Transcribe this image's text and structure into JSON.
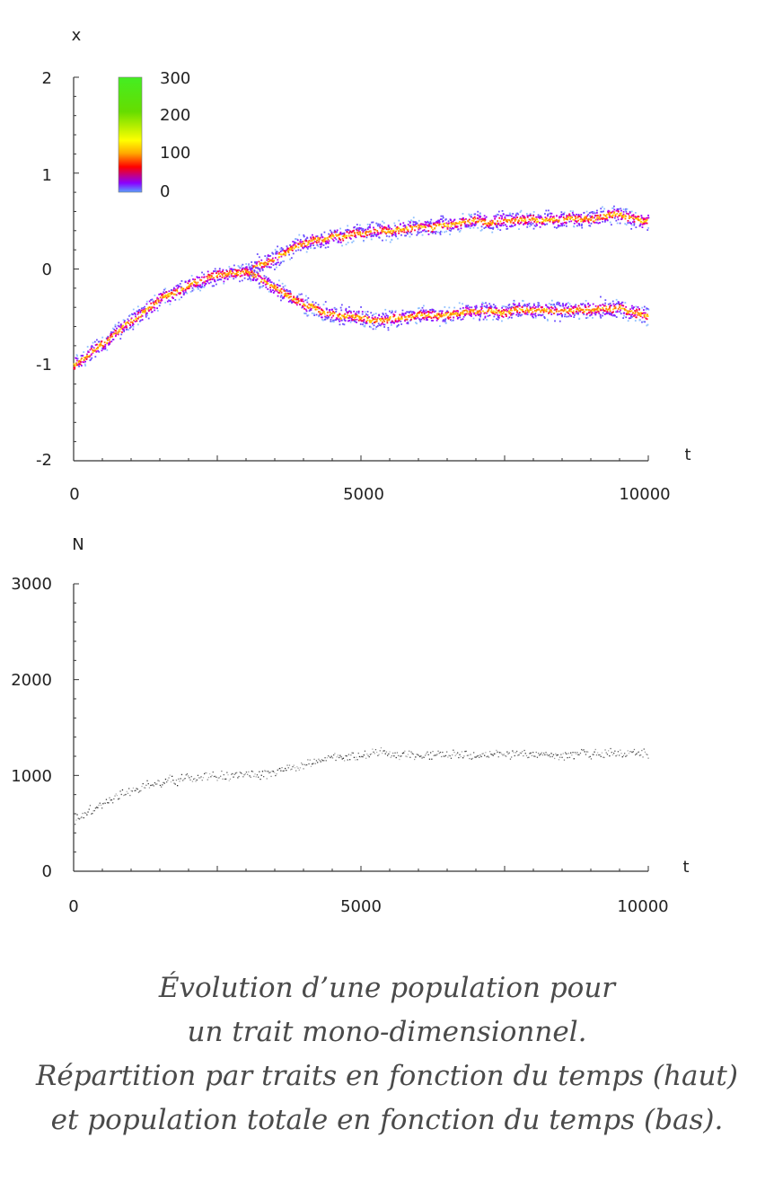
{
  "chart_data": [
    {
      "type": "heatmap",
      "title": "",
      "xlabel": "t",
      "ylabel": "x",
      "xlim": [
        0,
        10000
      ],
      "ylim": [
        -2,
        2
      ],
      "x_ticks": [
        "0",
        "5000",
        "10000"
      ],
      "y_ticks": [
        "2",
        "1",
        "0",
        "-1",
        "-2"
      ],
      "colorbar": {
        "ticks": [
          "300",
          "200",
          "100",
          "0"
        ],
        "range": [
          0,
          300
        ],
        "colors": [
          "#5aa0ff",
          "#8a00ff",
          "#ff0000",
          "#ffaa00",
          "#ffff00",
          "#66dd00",
          "#44ee22"
        ]
      },
      "series": [
        {
          "x": [
            0,
            500,
            1000,
            1500,
            2000,
            2500,
            3000,
            3500,
            4000,
            4500,
            5000,
            5500,
            6000,
            6500,
            7000,
            7500,
            8000,
            8500,
            9000,
            9500,
            10000
          ],
          "y": [
            -1.0,
            -0.78,
            -0.52,
            -0.32,
            -0.16,
            -0.04,
            -0.02,
            0.12,
            0.28,
            0.35,
            0.38,
            0.4,
            0.43,
            0.47,
            0.5,
            0.5,
            0.52,
            0.53,
            0.54,
            0.58,
            0.5
          ]
        },
        {
          "x": [
            3000,
            3500,
            4000,
            4500,
            5000,
            5500,
            6000,
            6500,
            7000,
            7500,
            8000,
            8500,
            9000,
            9500,
            10000
          ],
          "y": [
            -0.02,
            -0.18,
            -0.38,
            -0.46,
            -0.52,
            -0.53,
            -0.48,
            -0.45,
            -0.43,
            -0.44,
            -0.43,
            -0.42,
            -0.42,
            -0.39,
            -0.48
          ]
        }
      ]
    },
    {
      "type": "scatter",
      "title": "",
      "xlabel": "t",
      "ylabel": "N",
      "xlim": [
        0,
        10000
      ],
      "ylim": [
        0,
        3000
      ],
      "x_ticks": [
        "0",
        "5000",
        "10000"
      ],
      "y_ticks": [
        "3000",
        "2000",
        "1000",
        "0"
      ],
      "series": [
        {
          "x": [
            0,
            500,
            1000,
            1500,
            2000,
            2500,
            3000,
            3500,
            4000,
            4500,
            5000,
            5500,
            6000,
            6500,
            7000,
            7500,
            8000,
            8500,
            9000,
            9500,
            10000
          ],
          "y": [
            530,
            720,
            850,
            920,
            980,
            1000,
            1010,
            1040,
            1120,
            1190,
            1220,
            1240,
            1220,
            1220,
            1220,
            1225,
            1225,
            1220,
            1230,
            1240,
            1230
          ]
        }
      ]
    }
  ],
  "caption": {
    "lines": [
      "Évolution d’une population pour",
      "un trait mono-dimensionnel.",
      "Répartition par traits en fonction du temps (haut)",
      "et population totale en fonction du temps (bas)."
    ]
  }
}
